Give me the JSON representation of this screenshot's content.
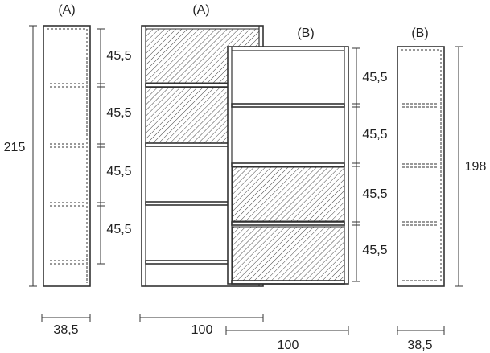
{
  "units": [
    {
      "tag": "(A)",
      "height": "215",
      "spacings": [
        "45,5",
        "45,5",
        "45,5",
        "45,5"
      ],
      "width": "38,5"
    },
    {
      "tag": "(A)",
      "width": "100"
    },
    {
      "tag": "(B)",
      "spacings": [
        "45,5",
        "45,5",
        "45,5",
        "45,5"
      ],
      "width": "100"
    },
    {
      "tag": "(B)",
      "height": "198",
      "width": "38,5"
    }
  ]
}
